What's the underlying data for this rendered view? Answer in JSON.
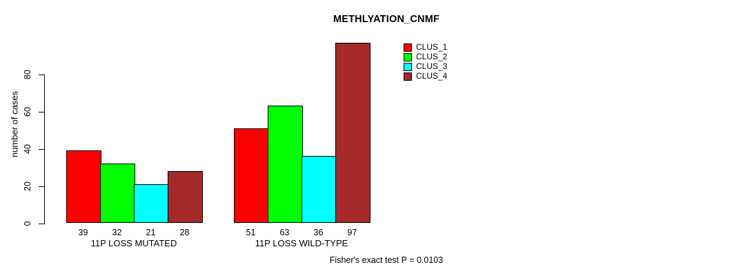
{
  "chart_data": {
    "type": "bar",
    "title": "METHLYATION_CNMF",
    "ylabel": "number of cases",
    "xlabel": "",
    "categories": [
      "11P LOSS MUTATED",
      "11P LOSS WILD-TYPE"
    ],
    "series": [
      {
        "name": "CLUS_1",
        "color": "#FF0000",
        "values": [
          39,
          51
        ]
      },
      {
        "name": "CLUS_2",
        "color": "#00FF00",
        "values": [
          32,
          63
        ]
      },
      {
        "name": "CLUS_3",
        "color": "#00FFFF",
        "values": [
          21,
          36
        ]
      },
      {
        "name": "CLUS_4",
        "color": "#A52A2A",
        "values": [
          28,
          97
        ]
      }
    ],
    "yticks": [
      0,
      20,
      40,
      60,
      80
    ],
    "ylim": [
      0,
      100
    ],
    "bar_value_labels": [
      [
        39,
        32,
        21,
        28
      ],
      [
        51,
        63,
        36,
        97
      ]
    ],
    "annotation": "Fisher's exact test P = 0.0103",
    "legend_position": "top-right",
    "grid": false,
    "background": "#ffffff",
    "axis_color": "#000000"
  }
}
